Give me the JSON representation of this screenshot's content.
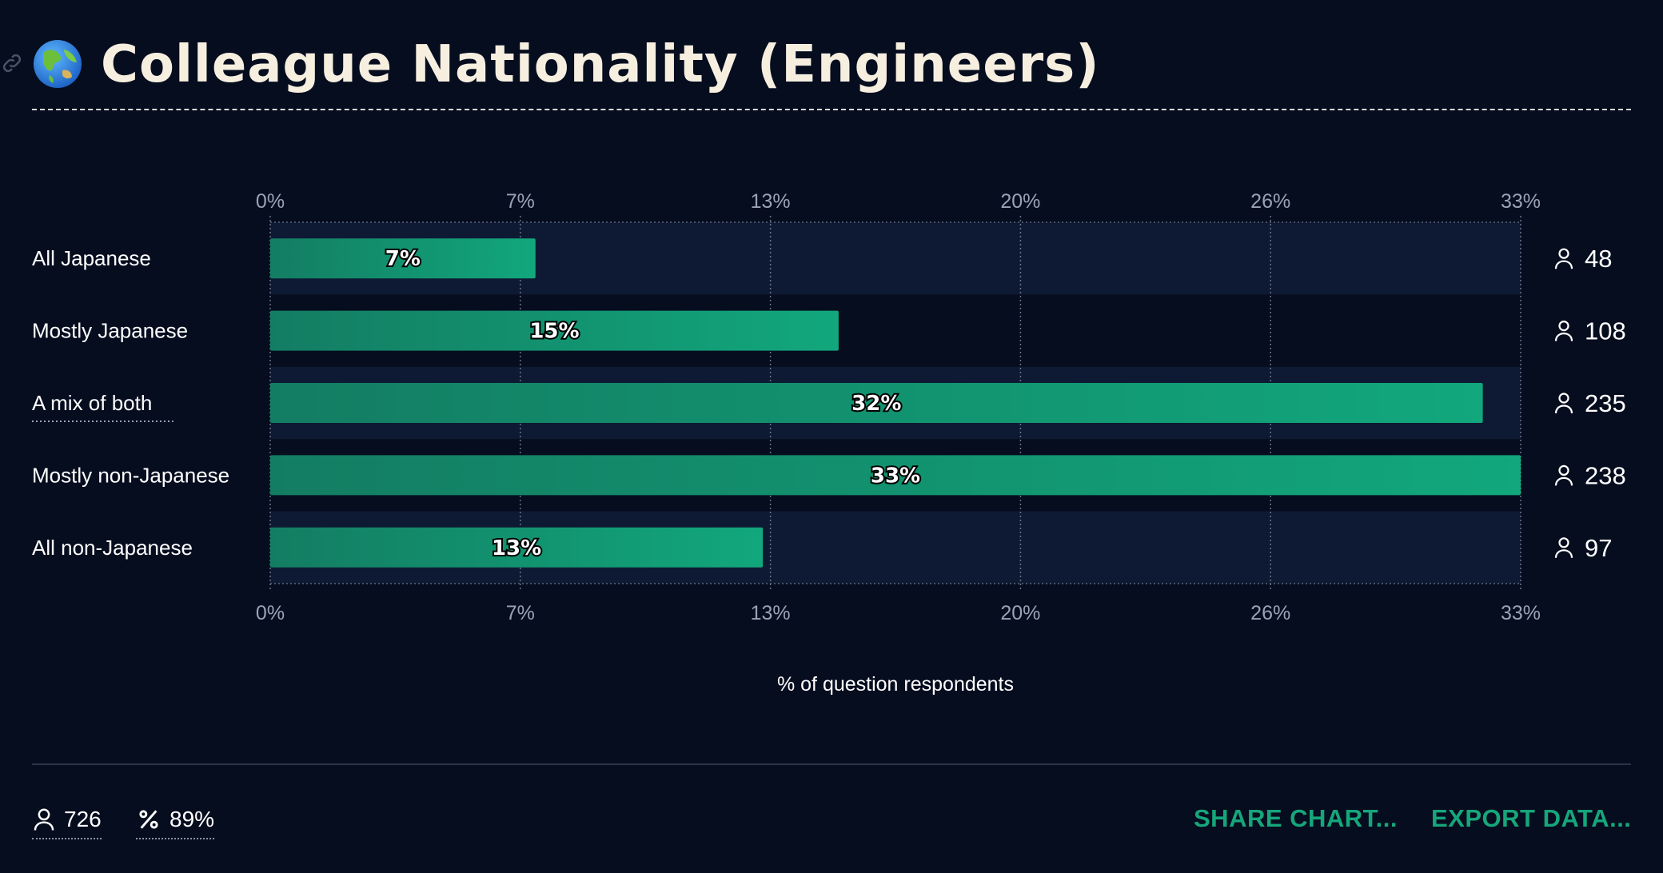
{
  "header": {
    "title": "Colleague Nationality (Engineers)"
  },
  "chart_data": {
    "type": "bar",
    "orientation": "horizontal",
    "categories": [
      "All Japanese",
      "Mostly Japanese",
      "A mix of both",
      "Mostly non-Japanese",
      "All non-Japanese"
    ],
    "values": [
      7,
      15,
      32,
      33,
      13
    ],
    "value_labels": [
      "7%",
      "15%",
      "32%",
      "33%",
      "13%"
    ],
    "counts": [
      48,
      108,
      235,
      238,
      97
    ],
    "ticks": [
      "0%",
      "7%",
      "13%",
      "20%",
      "26%",
      "33%"
    ],
    "tick_values": [
      0,
      6.6,
      13.2,
      19.8,
      26.4,
      33
    ],
    "xlim": [
      0,
      33
    ],
    "xlabel": "% of question respondents",
    "grid": true,
    "underlined_category": "A mix of both",
    "colors": {
      "bar_start": "#137d63",
      "bar_end": "#12a77c",
      "band": "#0e1a33",
      "background": "#060d1f",
      "tick_text": "#9aa3b5"
    }
  },
  "footer": {
    "respondents": "726",
    "percent": "89%",
    "share_label": "SHARE CHART...",
    "export_label": "EXPORT DATA..."
  },
  "icons": {
    "globe": "globe-asia-icon",
    "person": "person-icon",
    "percent": "percent-icon",
    "link": "link-icon"
  }
}
